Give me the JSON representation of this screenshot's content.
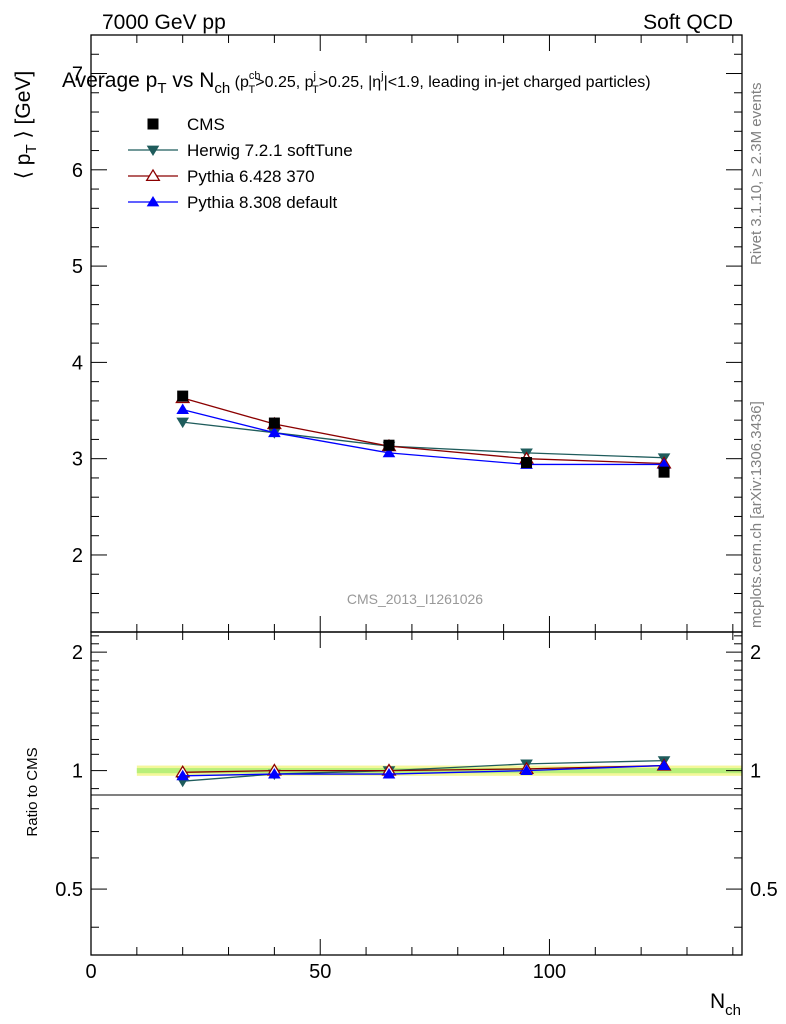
{
  "header": {
    "left": "7000 GeV pp",
    "right": "Soft QCD"
  },
  "side_labels": {
    "rivet": "Rivet 3.1.10, ≥ 2.3M events",
    "mcplots": "mcplots.cern.ch [arXiv:1306.3436]"
  },
  "watermark": "CMS_2013_I1261026",
  "chart_data": {
    "type": "line",
    "title": {
      "main": "Average p",
      "main_sub": "T",
      "vs": " vs N",
      "vs_sub": "ch",
      "cut1": " (p",
      "cut1_sup": "ch",
      "cut1_sub": "T",
      "cut1_val": ">0.25, p",
      "cut2_sup": "j",
      "cut2_sub": "T",
      "cut2_val": ">0.25, |η",
      "cut3_sup": "j",
      "cut3_val": "|<1.9, leading in-jet charged particles)"
    },
    "ylabel": {
      "pre": "⟨ p",
      "sub": "T",
      "post": " ⟩ [GeV]"
    },
    "xlabel": {
      "main": "N",
      "sub": "ch"
    },
    "ratio_ylabel": "Ratio to CMS",
    "xlim": [
      0,
      142
    ],
    "ylim": [
      1.2,
      7.4
    ],
    "ratio_ylim": [
      0.34,
      2.25
    ],
    "x_ticks": [
      "0",
      "50",
      "100"
    ],
    "y_ticks": [
      "2",
      "3",
      "4",
      "5",
      "6",
      "7"
    ],
    "ratio_ticks": [
      "0.5",
      "1",
      "2"
    ],
    "legend_position": "top-left",
    "x": [
      20,
      40,
      65,
      95,
      125
    ],
    "band": {
      "x": [
        10,
        142
      ],
      "yellow_half_width": 0.03,
      "green_half_width": 0.015
    },
    "series": [
      {
        "name": "CMS",
        "marker": "square",
        "color": "#000000",
        "values": [
          3.65,
          3.37,
          3.14,
          2.96,
          2.86
        ],
        "ratio": [
          1.0,
          1.0,
          1.0,
          1.0,
          1.0
        ]
      },
      {
        "name": "Herwig 7.2.1 softTune",
        "marker": "triangle-down",
        "color": "#1f5c5c",
        "values": [
          3.38,
          3.27,
          3.13,
          3.06,
          3.01
        ],
        "ratio": [
          0.94,
          0.98,
          1.0,
          1.04,
          1.06
        ]
      },
      {
        "name": "Pythia 6.428 370",
        "marker": "triangle-up-open",
        "color": "#8b0000",
        "values": [
          3.63,
          3.36,
          3.13,
          3.0,
          2.95
        ],
        "ratio": [
          0.99,
          1.0,
          1.0,
          1.01,
          1.03
        ]
      },
      {
        "name": "Pythia 8.308 default",
        "marker": "triangle-up",
        "color": "#0000ff",
        "values": [
          3.51,
          3.27,
          3.06,
          2.94,
          2.94
        ],
        "ratio": [
          0.97,
          0.98,
          0.98,
          1.0,
          1.03
        ]
      }
    ]
  }
}
